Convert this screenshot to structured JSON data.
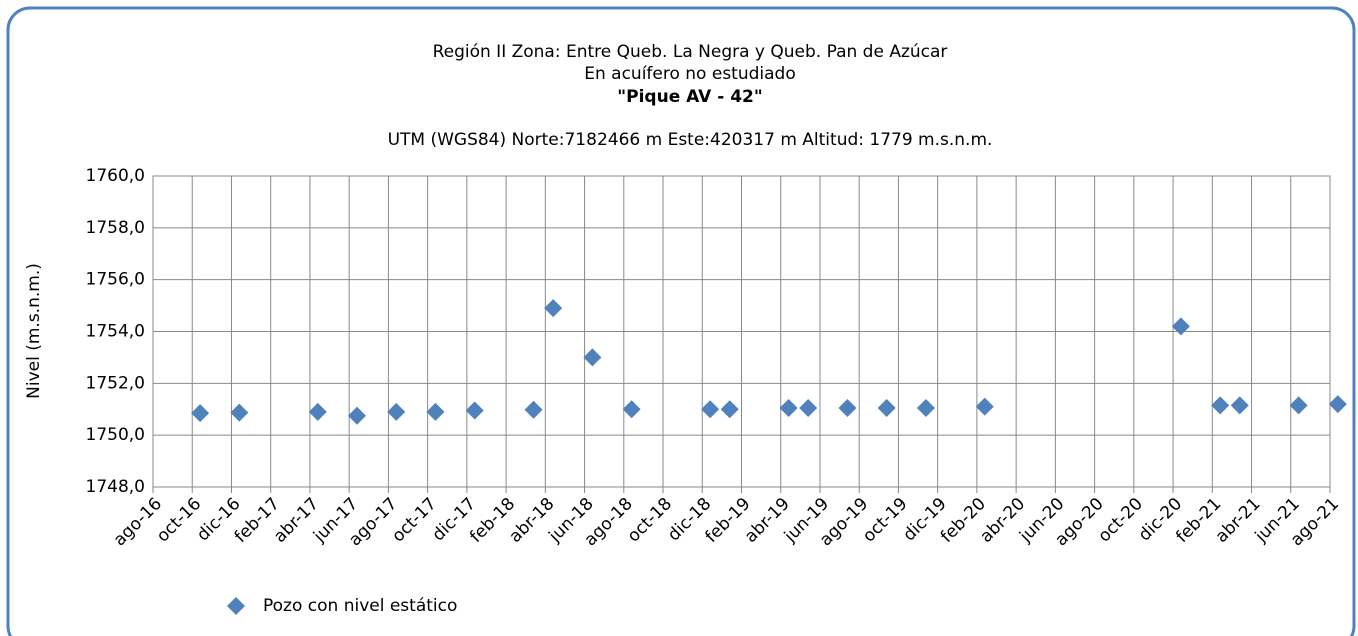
{
  "chart_data": {
    "type": "scatter",
    "title": "Región II  Zona: Entre Queb. La Negra y Queb. Pan de Azúcar",
    "subtitle": "En acuífero no estudiado",
    "well_name": "\"Pique AV - 42\"",
    "location": "UTM (WGS84) Norte:7182466 m   Este:420317 m Altitud: 1779 m.s.n.m.",
    "y_label": "Nivel (m.s.n.m.)",
    "grid": true,
    "legend": "bottom-left",
    "xlim": [
      "2016-08",
      "2021-08"
    ],
    "xticks": [
      {
        "value": "2016-08",
        "label": "ago-16"
      },
      {
        "value": "2016-10",
        "label": "oct-16"
      },
      {
        "value": "2016-12",
        "label": "dic-16"
      },
      {
        "value": "2017-02",
        "label": "feb-17"
      },
      {
        "value": "2017-04",
        "label": "abr-17"
      },
      {
        "value": "2017-06",
        "label": "jun-17"
      },
      {
        "value": "2017-08",
        "label": "ago-17"
      },
      {
        "value": "2017-10",
        "label": "oct-17"
      },
      {
        "value": "2017-12",
        "label": "dic-17"
      },
      {
        "value": "2018-02",
        "label": "feb-18"
      },
      {
        "value": "2018-04",
        "label": "abr-18"
      },
      {
        "value": "2018-06",
        "label": "jun-18"
      },
      {
        "value": "2018-08",
        "label": "ago-18"
      },
      {
        "value": "2018-10",
        "label": "oct-18"
      },
      {
        "value": "2018-12",
        "label": "dic-18"
      },
      {
        "value": "2019-02",
        "label": "feb-19"
      },
      {
        "value": "2019-04",
        "label": "abr-19"
      },
      {
        "value": "2019-06",
        "label": "jun-19"
      },
      {
        "value": "2019-08",
        "label": "ago-19"
      },
      {
        "value": "2019-10",
        "label": "oct-19"
      },
      {
        "value": "2019-12",
        "label": "dic-19"
      },
      {
        "value": "2020-02",
        "label": "feb-20"
      },
      {
        "value": "2020-04",
        "label": "abr-20"
      },
      {
        "value": "2020-06",
        "label": "jun-20"
      },
      {
        "value": "2020-08",
        "label": "ago-20"
      },
      {
        "value": "2020-10",
        "label": "oct-20"
      },
      {
        "value": "2020-12",
        "label": "dic-20"
      },
      {
        "value": "2021-02",
        "label": "feb-21"
      },
      {
        "value": "2021-04",
        "label": "abr-21"
      },
      {
        "value": "2021-06",
        "label": "jun-21"
      },
      {
        "value": "2021-08",
        "label": "ago-21"
      }
    ],
    "ylim": [
      1748,
      1760
    ],
    "yticks": [
      {
        "value": 1748,
        "label": "1748,0"
      },
      {
        "value": 1750,
        "label": "1750,0"
      },
      {
        "value": 1752,
        "label": "1752,0"
      },
      {
        "value": 1754,
        "label": "1754,0"
      },
      {
        "value": 1756,
        "label": "1756,0"
      },
      {
        "value": 1758,
        "label": "1758,0"
      },
      {
        "value": 1760,
        "label": "1760,0"
      }
    ],
    "x": [
      "2016-10",
      "2016-12",
      "2017-04",
      "2017-06",
      "2017-08",
      "2017-10",
      "2017-12",
      "2018-03",
      "2018-04",
      "2018-06",
      "2018-08",
      "2018-12",
      "2019-01",
      "2019-04",
      "2019-05",
      "2019-07",
      "2019-09",
      "2019-11",
      "2020-02",
      "2020-12",
      "2021-02",
      "2021-03",
      "2021-06",
      "2021-08"
    ],
    "series": [
      {
        "name": "Pozo con nivel estático",
        "color": "#4f81bd",
        "values": [
          1750.85,
          1750.87,
          1750.9,
          1750.75,
          1750.9,
          1750.9,
          1750.95,
          1750.98,
          1754.9,
          1753.0,
          1751.0,
          1751.0,
          1751.0,
          1751.05,
          1751.05,
          1751.05,
          1751.05,
          1751.05,
          1751.1,
          1754.2,
          1751.15,
          1751.15,
          1751.15,
          1751.2
        ]
      }
    ]
  }
}
